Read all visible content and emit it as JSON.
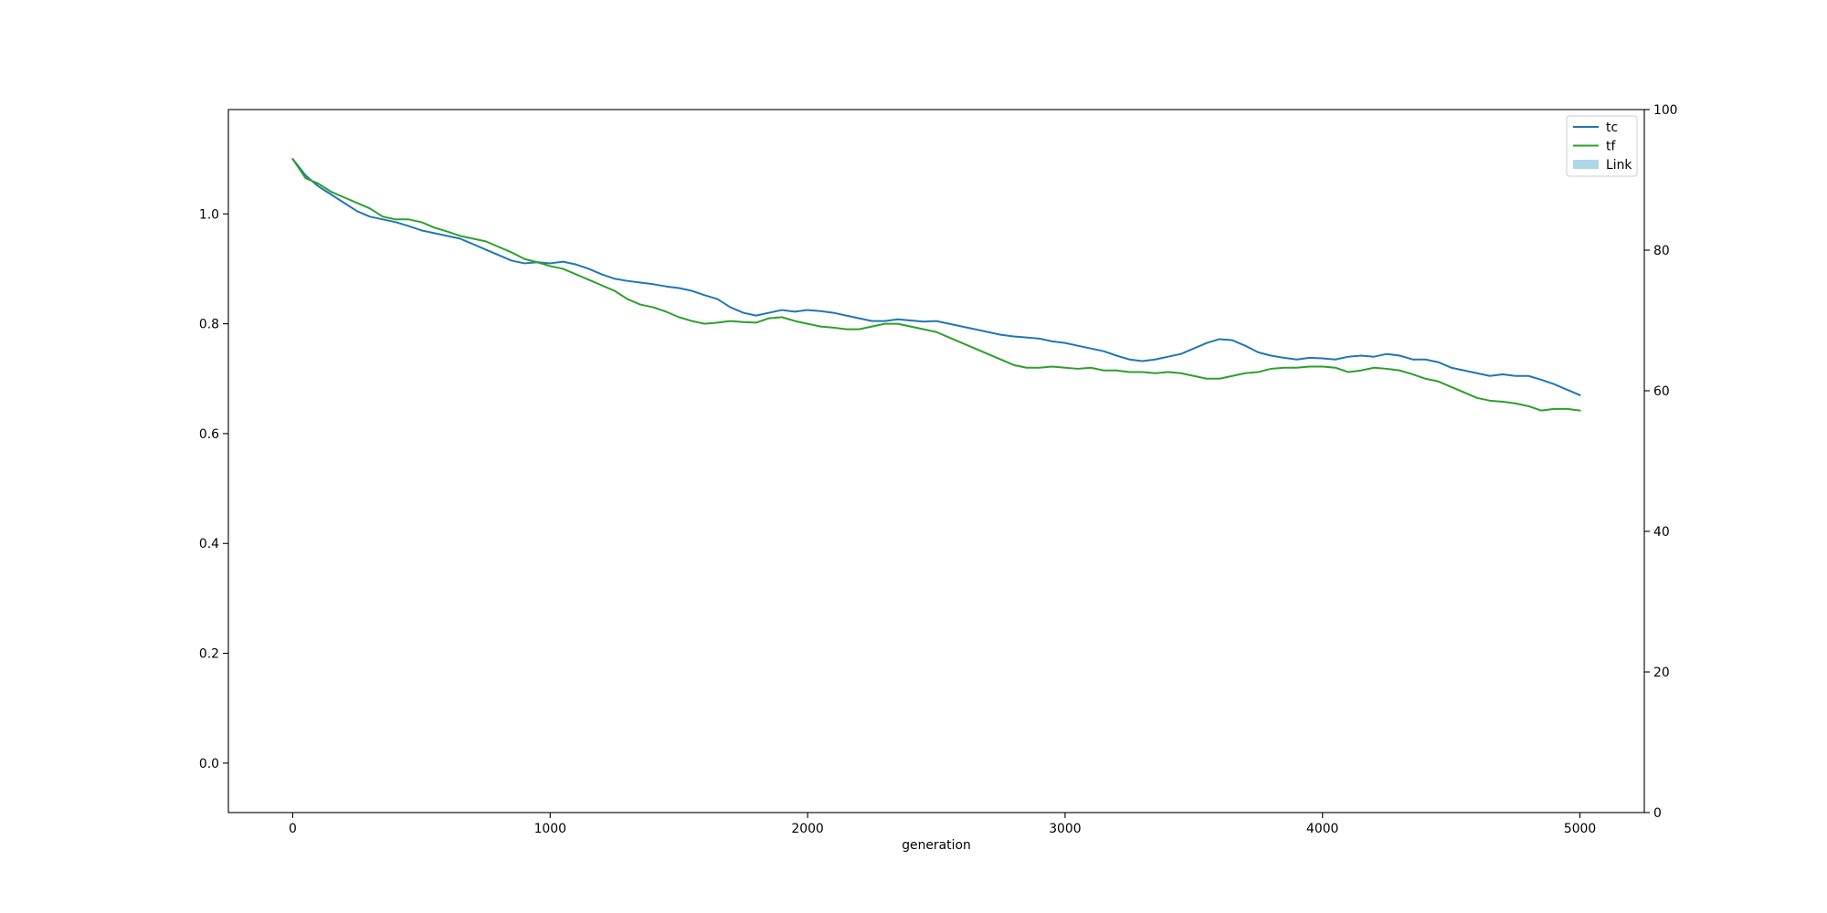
{
  "chart_data": {
    "type": "line",
    "xlabel": "generation",
    "ylabel": "",
    "y2label": "",
    "xlim": [
      -250,
      5250
    ],
    "ylim": [
      -0.09,
      1.19
    ],
    "y2lim": [
      0,
      100
    ],
    "xticks": [
      0,
      1000,
      2000,
      3000,
      4000,
      5000
    ],
    "yticks": [
      0.0,
      0.2,
      0.4,
      0.6,
      0.8,
      1.0
    ],
    "y2ticks": [
      0,
      20,
      40,
      60,
      80,
      100
    ],
    "xtick_labels": [
      "0",
      "1000",
      "2000",
      "3000",
      "4000",
      "5000"
    ],
    "ytick_labels": [
      "0.0",
      "0.2",
      "0.4",
      "0.6",
      "0.8",
      "1.0"
    ],
    "y2tick_labels": [
      "0",
      "20",
      "40",
      "60",
      "80",
      "100"
    ],
    "grid": false,
    "legend_position": "top-right",
    "series": [
      {
        "name": "tc",
        "color": "#1f77b4",
        "x": [
          0,
          50,
          100,
          150,
          200,
          250,
          300,
          350,
          400,
          450,
          500,
          550,
          600,
          650,
          700,
          750,
          800,
          850,
          900,
          950,
          1000,
          1050,
          1100,
          1150,
          1200,
          1250,
          1300,
          1350,
          1400,
          1450,
          1500,
          1550,
          1600,
          1650,
          1700,
          1750,
          1800,
          1850,
          1900,
          1950,
          2000,
          2050,
          2100,
          2150,
          2200,
          2250,
          2300,
          2350,
          2400,
          2450,
          2500,
          2550,
          2600,
          2650,
          2700,
          2750,
          2800,
          2850,
          2900,
          2950,
          3000,
          3050,
          3100,
          3150,
          3200,
          3250,
          3300,
          3350,
          3400,
          3450,
          3500,
          3550,
          3600,
          3650,
          3700,
          3750,
          3800,
          3850,
          3900,
          3950,
          4000,
          4050,
          4100,
          4150,
          4200,
          4250,
          4300,
          4350,
          4400,
          4450,
          4500,
          4550,
          4600,
          4650,
          4700,
          4750,
          4800,
          4850,
          4900,
          4950,
          5000
        ],
        "y": [
          1.1,
          1.07,
          1.05,
          1.035,
          1.02,
          1.005,
          0.995,
          0.99,
          0.985,
          0.978,
          0.97,
          0.965,
          0.96,
          0.955,
          0.945,
          0.935,
          0.925,
          0.915,
          0.91,
          0.912,
          0.91,
          0.913,
          0.908,
          0.9,
          0.89,
          0.882,
          0.878,
          0.875,
          0.872,
          0.868,
          0.865,
          0.86,
          0.852,
          0.845,
          0.83,
          0.82,
          0.815,
          0.82,
          0.825,
          0.822,
          0.825,
          0.823,
          0.82,
          0.815,
          0.81,
          0.805,
          0.805,
          0.808,
          0.806,
          0.804,
          0.805,
          0.8,
          0.795,
          0.79,
          0.785,
          0.78,
          0.777,
          0.775,
          0.773,
          0.768,
          0.765,
          0.76,
          0.755,
          0.75,
          0.742,
          0.735,
          0.732,
          0.735,
          0.74,
          0.745,
          0.755,
          0.765,
          0.772,
          0.77,
          0.76,
          0.748,
          0.742,
          0.738,
          0.735,
          0.738,
          0.737,
          0.735,
          0.74,
          0.742,
          0.74,
          0.745,
          0.742,
          0.735,
          0.735,
          0.73,
          0.72,
          0.715,
          0.71,
          0.705,
          0.708,
          0.705,
          0.705,
          0.698,
          0.69,
          0.68,
          0.67
        ]
      },
      {
        "name": "tf",
        "color": "#2ca02c",
        "x": [
          0,
          50,
          100,
          150,
          200,
          250,
          300,
          350,
          400,
          450,
          500,
          550,
          600,
          650,
          700,
          750,
          800,
          850,
          900,
          950,
          1000,
          1050,
          1100,
          1150,
          1200,
          1250,
          1300,
          1350,
          1400,
          1450,
          1500,
          1550,
          1600,
          1650,
          1700,
          1750,
          1800,
          1850,
          1900,
          1950,
          2000,
          2050,
          2100,
          2150,
          2200,
          2250,
          2300,
          2350,
          2400,
          2450,
          2500,
          2550,
          2600,
          2650,
          2700,
          2750,
          2800,
          2850,
          2900,
          2950,
          3000,
          3050,
          3100,
          3150,
          3200,
          3250,
          3300,
          3350,
          3400,
          3450,
          3500,
          3550,
          3600,
          3650,
          3700,
          3750,
          3800,
          3850,
          3900,
          3950,
          4000,
          4050,
          4100,
          4150,
          4200,
          4250,
          4300,
          4350,
          4400,
          4450,
          4500,
          4550,
          4600,
          4650,
          4700,
          4750,
          4800,
          4850,
          4900,
          4950,
          5000
        ],
        "y": [
          1.1,
          1.065,
          1.055,
          1.04,
          1.03,
          1.02,
          1.01,
          0.995,
          0.99,
          0.99,
          0.985,
          0.975,
          0.968,
          0.96,
          0.955,
          0.95,
          0.94,
          0.93,
          0.918,
          0.912,
          0.905,
          0.9,
          0.89,
          0.88,
          0.87,
          0.86,
          0.845,
          0.835,
          0.83,
          0.822,
          0.812,
          0.805,
          0.8,
          0.802,
          0.805,
          0.803,
          0.802,
          0.81,
          0.812,
          0.805,
          0.8,
          0.795,
          0.793,
          0.79,
          0.79,
          0.795,
          0.8,
          0.8,
          0.795,
          0.79,
          0.785,
          0.775,
          0.765,
          0.755,
          0.745,
          0.735,
          0.725,
          0.72,
          0.72,
          0.722,
          0.72,
          0.718,
          0.72,
          0.715,
          0.715,
          0.712,
          0.712,
          0.71,
          0.712,
          0.71,
          0.705,
          0.7,
          0.7,
          0.705,
          0.71,
          0.712,
          0.718,
          0.72,
          0.72,
          0.722,
          0.722,
          0.72,
          0.712,
          0.715,
          0.72,
          0.718,
          0.715,
          0.708,
          0.7,
          0.695,
          0.685,
          0.675,
          0.665,
          0.66,
          0.658,
          0.655,
          0.65,
          0.642,
          0.645,
          0.645,
          0.642
        ]
      }
    ],
    "secondary_series": [
      {
        "name": "Link",
        "type": "area",
        "color": "#add8e6",
        "values": []
      }
    ]
  }
}
